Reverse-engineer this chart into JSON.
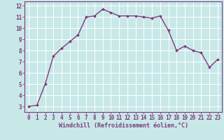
{
  "x": [
    0,
    1,
    2,
    3,
    4,
    5,
    6,
    7,
    8,
    9,
    10,
    11,
    12,
    13,
    14,
    15,
    16,
    17,
    18,
    19,
    20,
    21,
    22,
    23
  ],
  "y": [
    3.0,
    3.1,
    5.0,
    7.5,
    8.2,
    8.8,
    9.4,
    11.0,
    11.1,
    11.7,
    11.4,
    11.1,
    11.1,
    11.1,
    11.0,
    10.9,
    11.1,
    9.8,
    8.0,
    8.4,
    8.0,
    7.8,
    6.5,
    7.2
  ],
  "line_color": "#7b3b7b",
  "marker": "D",
  "marker_size": 1.8,
  "bg_color": "#c8e8e8",
  "grid_color": "#ffffff",
  "xlabel": "Windchill (Refroidissement éolien,°C)",
  "xlabel_color": "#7b3b7b",
  "tick_color": "#7b3b7b",
  "spine_color": "#7b3b7b",
  "ylim": [
    2.5,
    12.4
  ],
  "xlim": [
    -0.5,
    23.5
  ],
  "yticks": [
    3,
    4,
    5,
    6,
    7,
    8,
    9,
    10,
    11,
    12
  ],
  "xticks": [
    0,
    1,
    2,
    3,
    4,
    5,
    6,
    7,
    8,
    9,
    10,
    11,
    12,
    13,
    14,
    15,
    16,
    17,
    18,
    19,
    20,
    21,
    22,
    23
  ],
  "linewidth": 1.0,
  "tick_fontsize": 5.5,
  "xlabel_fontsize": 6.0
}
